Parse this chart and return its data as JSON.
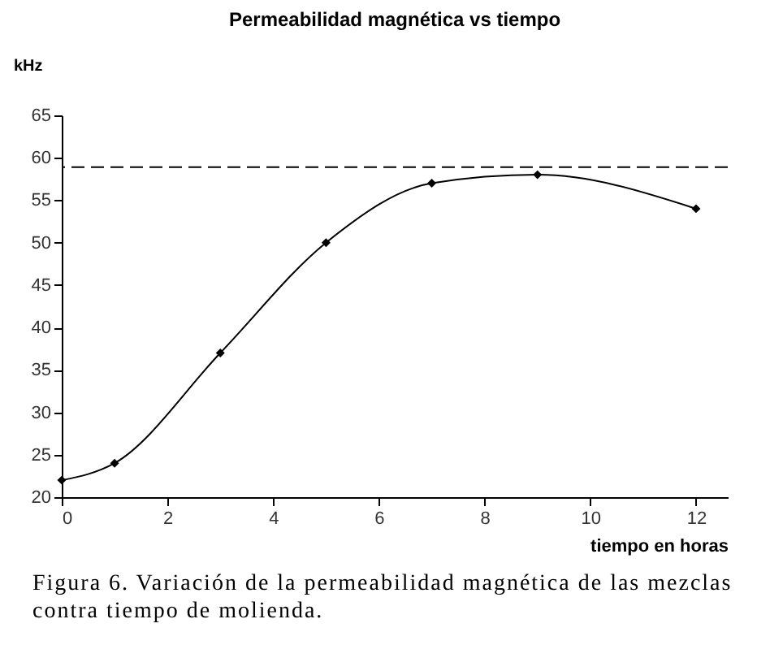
{
  "chart_data": {
    "type": "line",
    "title": "Permeabilidad magnética vs tiempo",
    "xlabel": "tiempo en horas",
    "ylabel": "kHz",
    "x": [
      0,
      1,
      3,
      5,
      7,
      9,
      12
    ],
    "values": [
      22,
      24,
      37,
      50,
      57,
      58,
      54
    ],
    "color": "#000000",
    "marker": "diamond",
    "line_style": "solid",
    "grid": false,
    "xlim": [
      0,
      12.6
    ],
    "xticks": [
      0,
      2,
      4,
      6,
      8,
      10,
      12
    ],
    "ylim": [
      20,
      65
    ],
    "yticks": [
      20,
      25,
      30,
      35,
      40,
      45,
      50,
      55,
      60,
      65
    ],
    "ref_lines": [
      {
        "axis": "y",
        "value": 58.9,
        "line_style": "dashed",
        "color": "#000000"
      }
    ],
    "annotations": [
      "Figura 6. Variación de la permeabilidad magnética de las mezclas contra tiempo de molienda."
    ]
  }
}
